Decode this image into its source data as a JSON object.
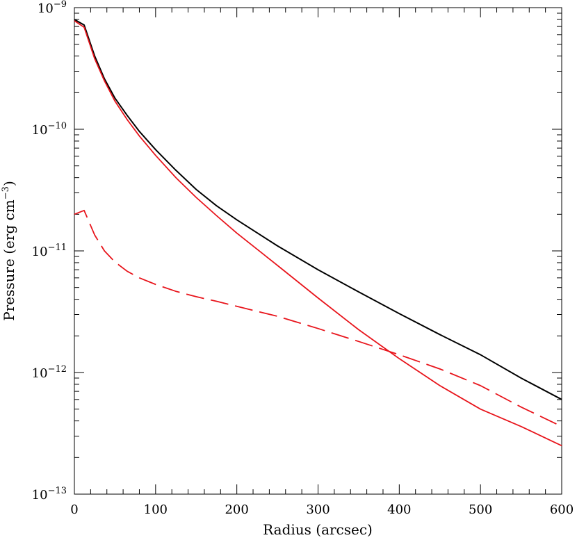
{
  "chart_data": {
    "type": "line",
    "title": "",
    "xlabel": "Radius (arcsec)",
    "ylabel": "Pressure (erg cm",
    "ylabel_sup": "−3",
    "ylabel_suffix": ")",
    "xlim": [
      0,
      600
    ],
    "ylim": [
      1e-13,
      1e-09
    ],
    "yscale": "log",
    "grid": false,
    "legend": "none",
    "x_ticks": [
      0,
      100,
      200,
      300,
      400,
      500,
      600
    ],
    "x_tick_labels": [
      "0",
      "100",
      "200",
      "300",
      "400",
      "500",
      "600"
    ],
    "y_ticks": [
      1e-13,
      1e-12,
      1e-11,
      1e-10,
      1e-09
    ],
    "y_tick_labels": [
      {
        "base": "10",
        "exp": "−13"
      },
      {
        "base": "10",
        "exp": "−12"
      },
      {
        "base": "10",
        "exp": "−11"
      },
      {
        "base": "10",
        "exp": "−10"
      },
      {
        "base": "10",
        "exp": "−9"
      }
    ],
    "series": [
      {
        "color": "#000000",
        "style": "solid",
        "x": [
          0,
          12,
          25,
          37,
          50,
          65,
          80,
          100,
          125,
          150,
          175,
          200,
          250,
          300,
          350,
          400,
          450,
          500,
          550,
          600
        ],
        "y": [
          8e-10,
          7.2e-10,
          4e-10,
          2.6e-10,
          1.8e-10,
          1.3e-10,
          9.6e-11,
          6.8e-11,
          4.6e-11,
          3.2e-11,
          2.35e-11,
          1.8e-11,
          1.1e-11,
          7e-12,
          4.6e-12,
          3.05e-12,
          2.05e-12,
          1.4e-12,
          9e-13,
          6e-13
        ]
      },
      {
        "color": "#e8141b",
        "style": "solid",
        "x": [
          0,
          12,
          25,
          37,
          50,
          65,
          80,
          100,
          125,
          150,
          175,
          200,
          250,
          300,
          350,
          400,
          450,
          500,
          550,
          600
        ],
        "y": [
          7.8e-10,
          6.9e-10,
          3.8e-10,
          2.5e-10,
          1.7e-10,
          1.2e-10,
          8.8e-11,
          6.1e-11,
          4e-11,
          2.75e-11,
          1.95e-11,
          1.4e-11,
          7.6e-12,
          4.1e-12,
          2.25e-12,
          1.3e-12,
          7.8e-13,
          5e-13,
          3.6e-13,
          2.5e-13
        ]
      },
      {
        "color": "#e8141b",
        "style": "dashed",
        "x": [
          0,
          12,
          25,
          37,
          50,
          65,
          80,
          100,
          125,
          150,
          175,
          200,
          250,
          300,
          350,
          400,
          450,
          500,
          550,
          600
        ],
        "y": [
          2e-11,
          2.15e-11,
          1.35e-11,
          1e-11,
          8.1e-12,
          6.8e-12,
          6e-12,
          5.3e-12,
          4.65e-12,
          4.2e-12,
          3.85e-12,
          3.5e-12,
          2.9e-12,
          2.3e-12,
          1.8e-12,
          1.4e-12,
          1.07e-12,
          7.8e-13,
          5.2e-13,
          3.6e-13
        ]
      }
    ]
  }
}
